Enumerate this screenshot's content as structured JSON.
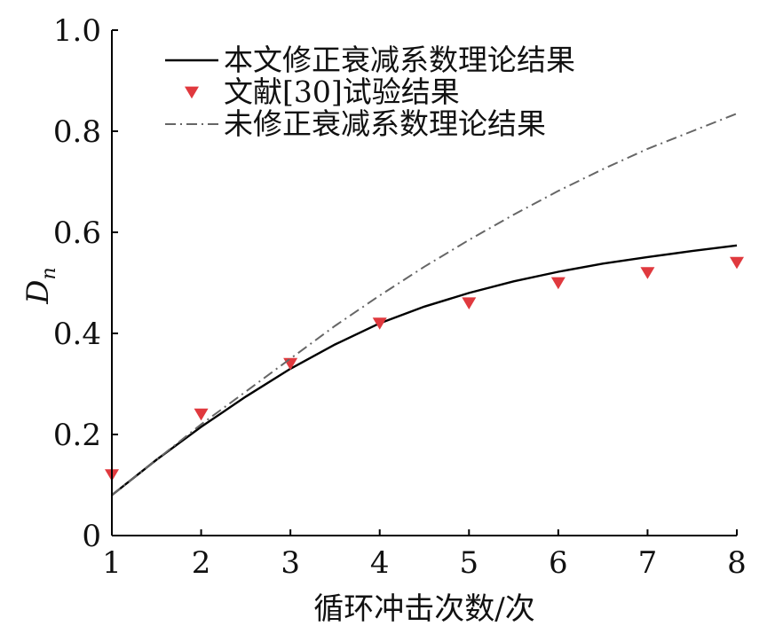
{
  "chart_data": {
    "type": "line",
    "xlabel": "循环冲击次数/次",
    "ylabel_main": "D",
    "ylabel_sub": "n",
    "xlim": [
      1,
      8
    ],
    "ylim": [
      0,
      1.0
    ],
    "x_ticks": [
      "1",
      "2",
      "3",
      "4",
      "5",
      "6",
      "7",
      "8"
    ],
    "y_ticks": [
      "0",
      "0.2",
      "0.4",
      "0.6",
      "0.8",
      "1.0"
    ],
    "legend_position": "top-left",
    "series": [
      {
        "name": "本文修正衰减系数理论结果",
        "kind": "line",
        "style": "solid",
        "color": "#000000",
        "x": [
          1,
          1.5,
          2,
          2.5,
          3,
          3.5,
          4,
          4.5,
          5,
          5.5,
          6,
          6.5,
          7,
          7.5,
          8
        ],
        "y": [
          0.08,
          0.15,
          0.215,
          0.275,
          0.33,
          0.378,
          0.42,
          0.453,
          0.48,
          0.503,
          0.522,
          0.538,
          0.551,
          0.563,
          0.574
        ]
      },
      {
        "name": "文献[30]试验结果",
        "kind": "scatter",
        "marker": "triangle-down",
        "color": "#e0393e",
        "x": [
          1,
          2,
          3,
          4,
          5,
          6,
          7,
          8
        ],
        "y": [
          0.12,
          0.24,
          0.34,
          0.42,
          0.46,
          0.5,
          0.52,
          0.54
        ]
      },
      {
        "name": "未修正衰减系数理论结果",
        "kind": "line",
        "style": "dashdot",
        "color": "#666666",
        "x": [
          1,
          1.5,
          2,
          2.5,
          3,
          3.5,
          4,
          4.5,
          5,
          5.5,
          6,
          6.5,
          7,
          7.5,
          8
        ],
        "y": [
          0.08,
          0.15,
          0.22,
          0.285,
          0.35,
          0.415,
          0.475,
          0.532,
          0.585,
          0.635,
          0.682,
          0.725,
          0.765,
          0.8,
          0.835
        ]
      }
    ]
  }
}
